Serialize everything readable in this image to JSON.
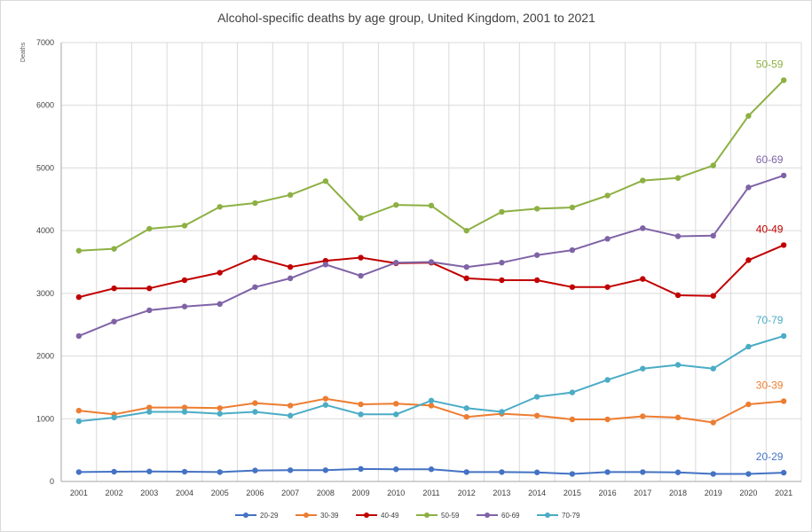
{
  "chart_data": {
    "type": "line",
    "title": "Alcohol-specific deaths by age group, United Kingdom, 2001 to 2021",
    "ylabel": "Deaths",
    "xlabel": "",
    "ylim": [
      0,
      7000
    ],
    "yticks": [
      "0",
      "1000",
      "2000",
      "3000",
      "4000",
      "5000",
      "6000",
      "7000"
    ],
    "x": [
      "2001",
      "2002",
      "2003",
      "2004",
      "2005",
      "2006",
      "2007",
      "2008",
      "2009",
      "2010",
      "2011",
      "2012",
      "2013",
      "2014",
      "2015",
      "2016",
      "2017",
      "2018",
      "2019",
      "2020",
      "2021"
    ],
    "grid": "vertical and horizontal gridlines",
    "legend": "bottom",
    "series": [
      {
        "name": "20-29",
        "color": "#4472c4",
        "values": [
          150,
          155,
          160,
          155,
          150,
          175,
          180,
          180,
          200,
          195,
          195,
          150,
          150,
          145,
          120,
          150,
          150,
          145,
          120,
          120,
          140
        ]
      },
      {
        "name": "30-39",
        "color": "#ed7d31",
        "values": [
          1130,
          1070,
          1180,
          1180,
          1170,
          1250,
          1210,
          1320,
          1230,
          1240,
          1210,
          1030,
          1080,
          1050,
          990,
          990,
          1040,
          1020,
          940,
          1230,
          1280
        ]
      },
      {
        "name": "40-49",
        "color": "#c00000",
        "values": [
          2940,
          3080,
          3080,
          3210,
          3330,
          3570,
          3420,
          3520,
          3570,
          3480,
          3490,
          3240,
          3210,
          3210,
          3100,
          3100,
          3230,
          2970,
          2960,
          3530,
          3770
        ]
      },
      {
        "name": "50-59",
        "color": "#8db043",
        "values": [
          3680,
          3710,
          4030,
          4080,
          4380,
          4440,
          4570,
          4790,
          4200,
          4410,
          4400,
          4000,
          4300,
          4350,
          4370,
          4560,
          4800,
          4840,
          5040,
          5830,
          6400
        ]
      },
      {
        "name": "60-69",
        "color": "#7f63a6",
        "values": [
          2320,
          2550,
          2730,
          2790,
          2830,
          3100,
          3240,
          3460,
          3280,
          3490,
          3500,
          3420,
          3490,
          3610,
          3690,
          3870,
          4040,
          3910,
          3920,
          4690,
          4880
        ]
      },
      {
        "name": "70-79",
        "color": "#4bacc6",
        "values": [
          960,
          1020,
          1110,
          1110,
          1080,
          1110,
          1050,
          1220,
          1070,
          1070,
          1290,
          1170,
          1110,
          1350,
          1420,
          1620,
          1800,
          1860,
          1800,
          2150,
          2320
        ]
      }
    ]
  }
}
